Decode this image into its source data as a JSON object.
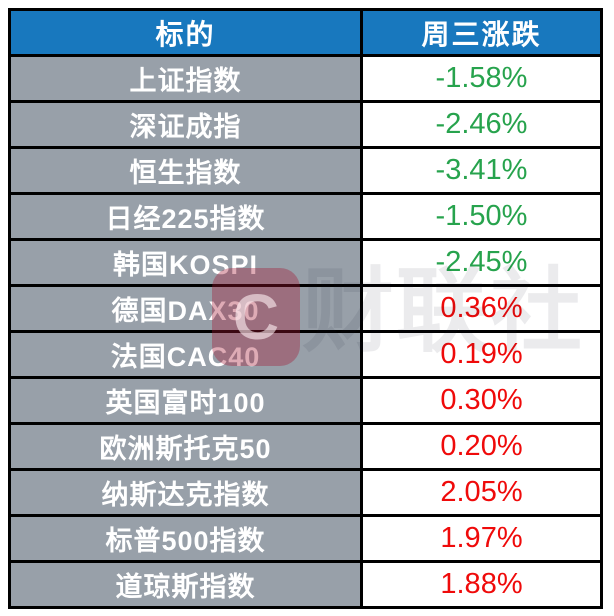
{
  "chart_data": {
    "type": "table",
    "title": "",
    "columns": [
      "标的",
      "周三涨跌"
    ],
    "categories": [
      "上证指数",
      "深证成指",
      "恒生指数",
      "日经225指数",
      "韩国KOSPI",
      "德国DAX30",
      "法国CAC40",
      "英国富时100",
      "欧洲斯托克50",
      "纳斯达克指数",
      "标普500指数",
      "道琼斯指数"
    ],
    "values_pct": [
      -1.58,
      -2.46,
      -3.41,
      -1.5,
      -2.45,
      0.36,
      0.19,
      0.3,
      0.2,
      2.05,
      1.97,
      1.88
    ]
  },
  "header": {
    "target_label": "标的",
    "change_label": "周三涨跌"
  },
  "rows": [
    {
      "label": "上证指数",
      "value": "-1.58%",
      "direction": "down"
    },
    {
      "label": "深证成指",
      "value": "-2.46%",
      "direction": "down"
    },
    {
      "label": "恒生指数",
      "value": "-3.41%",
      "direction": "down"
    },
    {
      "label": "日经225指数",
      "value": "-1.50%",
      "direction": "down"
    },
    {
      "label": "韩国KOSPI",
      "value": "-2.45%",
      "direction": "down"
    },
    {
      "label": "德国DAX30",
      "value": "0.36%",
      "direction": "up"
    },
    {
      "label": "法国CAC40",
      "value": "0.19%",
      "direction": "up"
    },
    {
      "label": "英国富时100",
      "value": "0.30%",
      "direction": "up"
    },
    {
      "label": "欧洲斯托克50",
      "value": "0.20%",
      "direction": "up"
    },
    {
      "label": "纳斯达克指数",
      "value": "2.05%",
      "direction": "up"
    },
    {
      "label": "标普500指数",
      "value": "1.97%",
      "direction": "up"
    },
    {
      "label": "道琼斯指数",
      "value": "1.88%",
      "direction": "up"
    }
  ],
  "colors": {
    "header_bg": "#1878BE",
    "label_bg": "#98A0A9",
    "border": "#000000",
    "down": "#27A34D",
    "up": "#EF0A0A"
  },
  "watermark": {
    "logo_letter": "C",
    "text": "财联社"
  }
}
